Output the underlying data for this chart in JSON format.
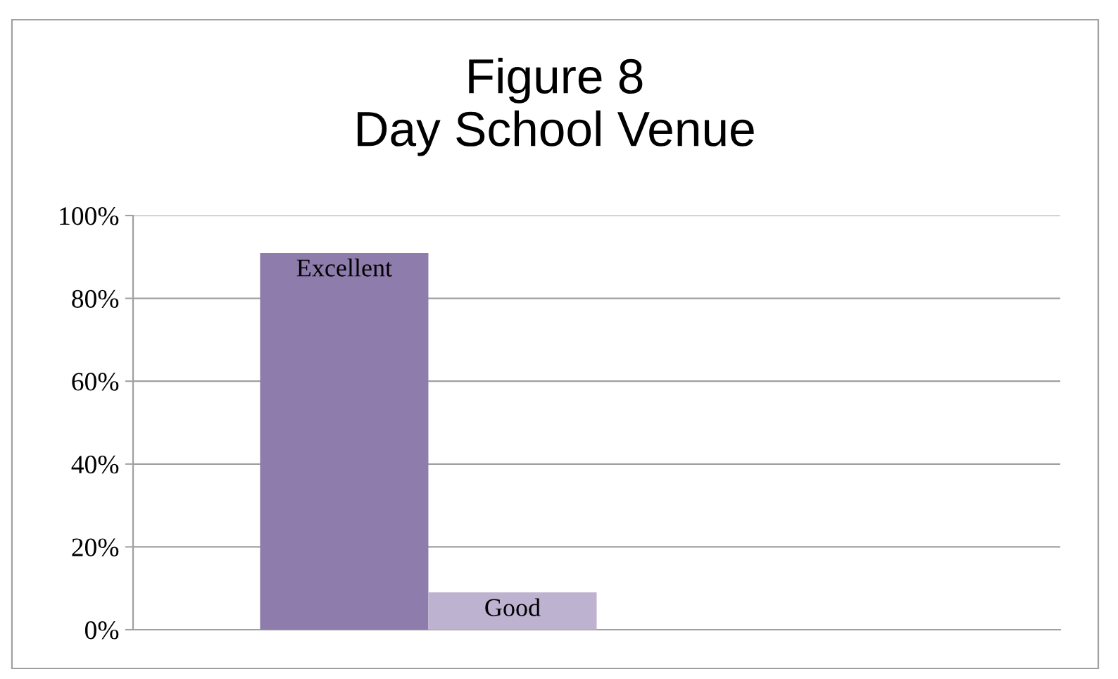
{
  "chart_data": {
    "type": "bar",
    "title": "Figure 8\nDay School Venue",
    "categories": [
      null
    ],
    "series": [
      {
        "name": "Excellent",
        "color": "#8e7dac",
        "values": [
          91
        ]
      },
      {
        "name": "Good",
        "color": "#bdb2d0",
        "values": [
          9
        ]
      },
      {
        "values": [
          null
        ]
      },
      {
        "values": [
          null
        ]
      }
    ],
    "ylim": [
      0,
      100
    ],
    "yticks": [
      {
        "value": 0,
        "label": "0%"
      },
      {
        "value": 20,
        "label": "20%"
      },
      {
        "value": 40,
        "label": "40%"
      },
      {
        "value": 60,
        "label": "60%"
      },
      {
        "value": 80,
        "label": "80%"
      },
      {
        "value": 100,
        "label": "100%"
      }
    ],
    "grid": "y",
    "legend": false
  }
}
